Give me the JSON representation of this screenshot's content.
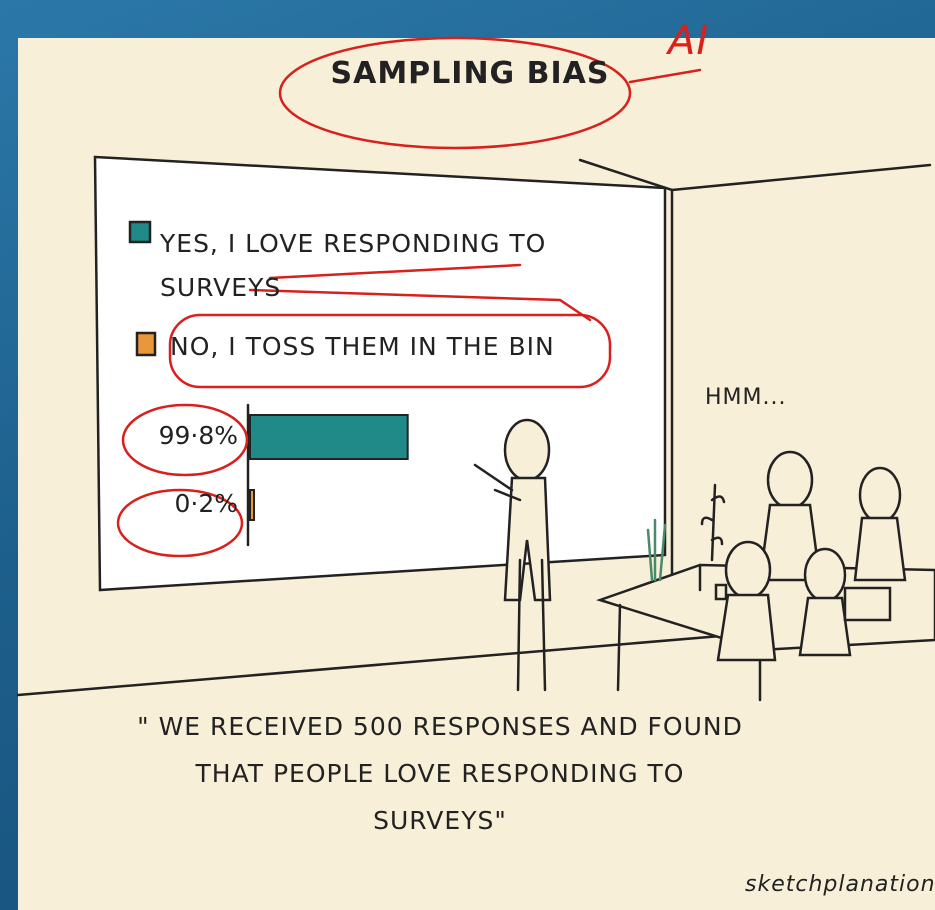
{
  "title": "SAMPLING BIAS",
  "annotation": "AI",
  "chart_data": {
    "type": "bar",
    "orientation": "horizontal",
    "xlim": [
      0,
      100
    ],
    "series": [
      {
        "name": "YES, I LOVE RESPONDING TO SURVEYS",
        "color": "#1f8a88",
        "values": [
          99.8
        ],
        "value_labels": [
          "99·8%"
        ]
      },
      {
        "name": "NO, I TOSS THEM IN THE BIN",
        "color": "#e8973a",
        "values": [
          0.2
        ],
        "value_labels": [
          "0·2%"
        ]
      }
    ]
  },
  "speech": "HMM...",
  "caption": "\" WE RECEIVED 500 RESPONSES AND FOUND THAT PEOPLE LOVE RESPONDING TO SURVEYS\"",
  "credit": "sketchplanations"
}
